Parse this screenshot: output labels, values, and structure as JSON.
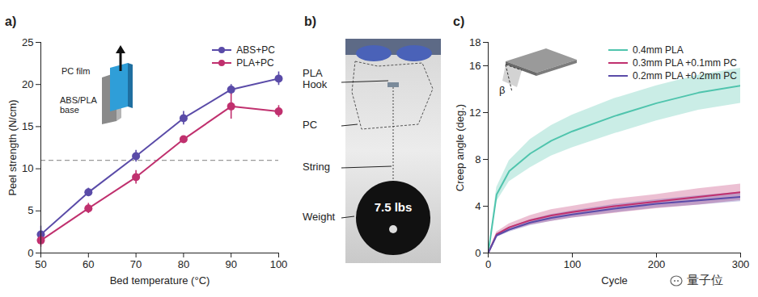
{
  "chart_data": [
    {
      "panel_label": "a)",
      "type": "line",
      "x_label": "Bed temperature (°C)",
      "y_label": "Peel strength (N/cm)",
      "x": [
        50,
        60,
        70,
        80,
        90,
        100
      ],
      "series": [
        {
          "name": "ABS+PC",
          "color": "#5a4ba8",
          "marker": "circle",
          "values": [
            2.2,
            7.2,
            11.5,
            16.0,
            19.4,
            20.7
          ],
          "errors": [
            1.0,
            0.5,
            0.7,
            0.8,
            0.6,
            0.8
          ]
        },
        {
          "name": "PLA+PC",
          "color": "#c0306e",
          "marker": "circle",
          "values": [
            1.5,
            5.3,
            9.0,
            13.5,
            17.4,
            16.8
          ],
          "errors": [
            0.8,
            0.6,
            0.8,
            0.3,
            1.5,
            0.7
          ]
        }
      ],
      "reference_line": {
        "y": 11,
        "line_style": "dashed"
      },
      "xlim": [
        50,
        100
      ],
      "xticks": [
        50,
        60,
        70,
        80,
        90,
        100
      ],
      "ylim": [
        0,
        25
      ],
      "yticks": [
        0,
        5,
        10,
        15,
        20,
        25
      ],
      "legend": "top-right",
      "annotations": [
        "PC film",
        "ABS/PLA base"
      ]
    },
    {
      "panel_label": "c)",
      "type": "line",
      "x_label": "Cycle",
      "y_label": "Creep angle (deg.)",
      "x": [
        0,
        10,
        25,
        50,
        75,
        100,
        150,
        200,
        250,
        300
      ],
      "series": [
        {
          "name": "0.4mm PLA",
          "color": "#4fc4ad",
          "marker": "none",
          "values": [
            0,
            5.0,
            7.0,
            8.5,
            9.6,
            10.4,
            11.7,
            12.8,
            13.7,
            14.3
          ],
          "band": [
            0,
            0.6,
            0.9,
            1.2,
            1.3,
            1.4,
            1.5,
            1.5,
            1.5,
            1.5
          ]
        },
        {
          "name": "0.3mm PLA +0.1mm PC",
          "color": "#c0306e",
          "marker": "none",
          "values": [
            0,
            1.6,
            2.2,
            2.8,
            3.2,
            3.5,
            4.0,
            4.4,
            4.8,
            5.2
          ],
          "band": [
            0,
            0.2,
            0.3,
            0.4,
            0.5,
            0.5,
            0.6,
            0.6,
            0.7,
            0.7
          ]
        },
        {
          "name": "0.2mm PLA +0.2mm PC",
          "color": "#5a4ba8",
          "marker": "none",
          "values": [
            0,
            1.5,
            2.0,
            2.6,
            3.0,
            3.3,
            3.8,
            4.2,
            4.5,
            4.8
          ],
          "band": [
            0,
            0.15,
            0.2,
            0.25,
            0.3,
            0.3,
            0.35,
            0.35,
            0.4,
            0.4
          ]
        }
      ],
      "xlim": [
        0,
        300
      ],
      "xticks": [
        0,
        100,
        200,
        300
      ],
      "ylim": [
        0,
        18
      ],
      "yticks": [
        0,
        4,
        8,
        12,
        16,
        18
      ],
      "legend": "top-right",
      "annotations": [
        "β"
      ]
    }
  ],
  "photo_panel": {
    "panel_label": "b)",
    "labels": [
      "PLA Hook",
      "PC",
      "String",
      "Weight"
    ],
    "weight_label": "7.5 lbs"
  },
  "watermark": "量子位"
}
